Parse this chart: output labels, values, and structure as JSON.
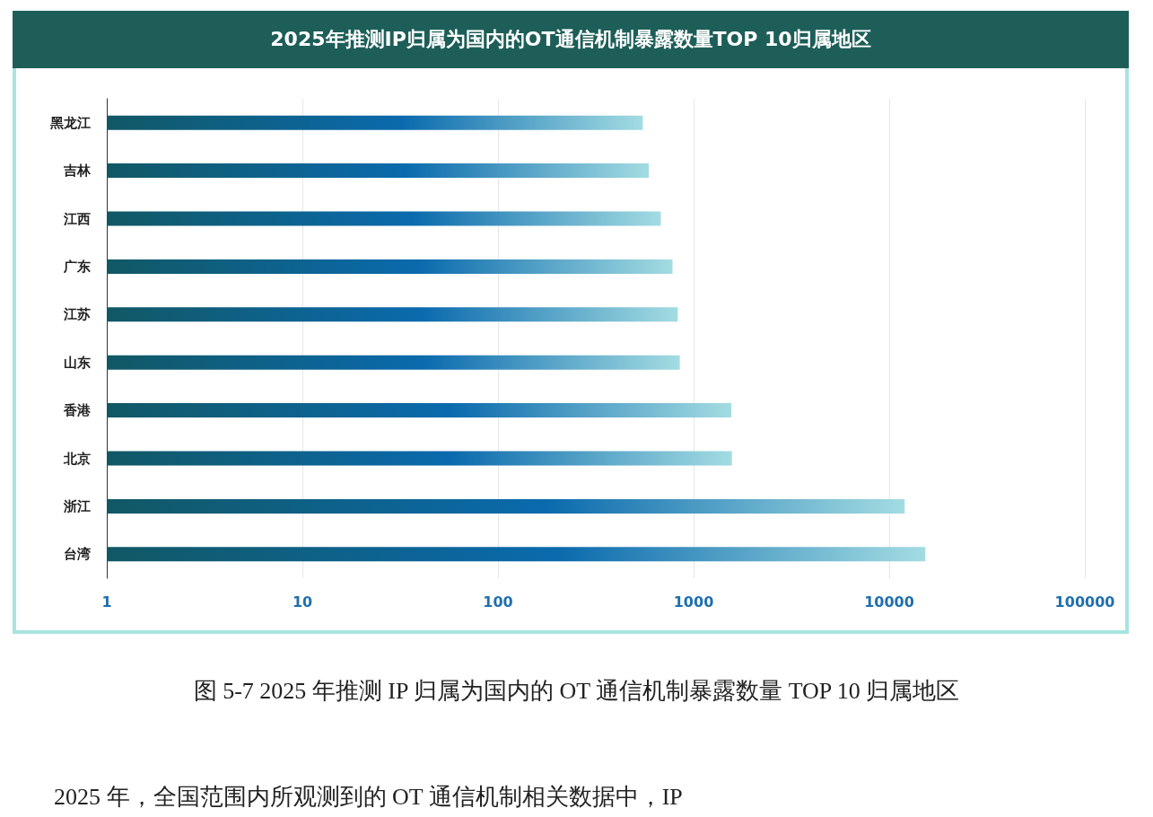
{
  "chart_data": {
    "type": "bar",
    "orientation": "horizontal",
    "title": "2025年推测IP归属为国内的OT通信机制暴露数量TOP 10归属地区",
    "categories": [
      "黑龙江",
      "吉林",
      "江西",
      "广东",
      "江苏",
      "山东",
      "香港",
      "北京",
      "浙江",
      "台湾"
    ],
    "values": [
      550,
      590,
      680,
      780,
      830,
      850,
      1560,
      1570,
      12000,
      15300
    ],
    "color": "#0a6aad",
    "log": "x",
    "xlim": [
      1,
      100000
    ],
    "xticks": [
      1,
      10,
      100,
      1000,
      10000,
      100000
    ],
    "grid": "x",
    "annotations": [
      "图 5-7 2025 年推测 IP 归属为国内的 OT 通信机制暴露数量 TOP 10 归属地区",
      "2025 年，全国范围内所观测到的 OT 通信机制相关数据中，IP"
    ]
  }
}
